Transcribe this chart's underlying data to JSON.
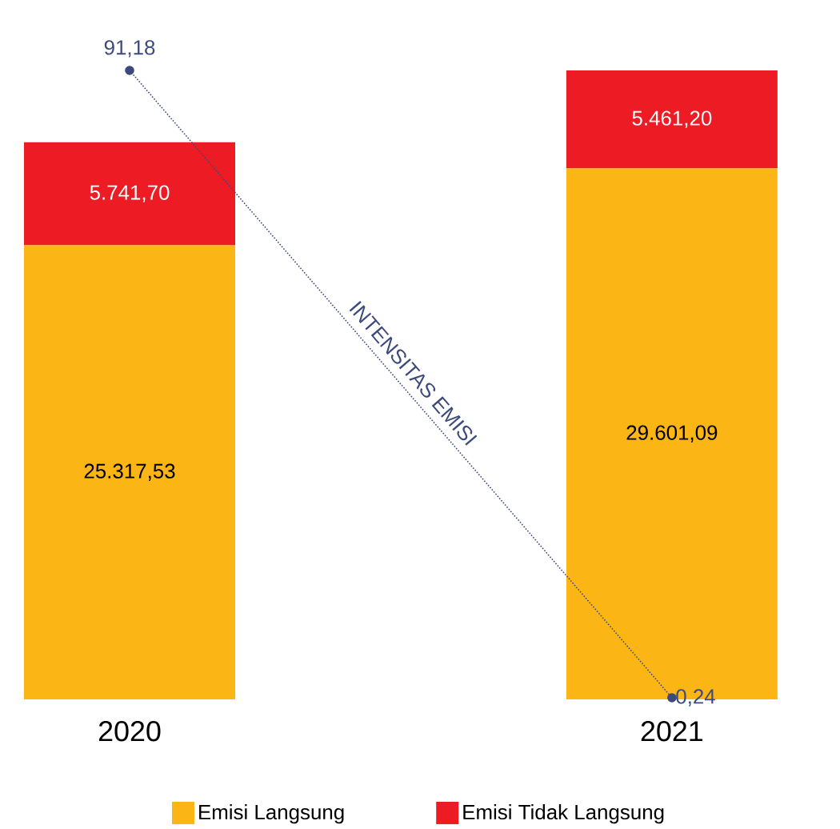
{
  "chart_data": {
    "type": "bar",
    "stacked": true,
    "categories": [
      "2020",
      "2021"
    ],
    "legend": "bottom",
    "series": [
      {
        "name": "Emisi Langsung",
        "color": "#fbb615",
        "values": [
          25317.53,
          29601.09
        ],
        "value_labels": [
          "25.317,53",
          "29.601,09"
        ]
      },
      {
        "name": "Emisi Tidak Langsung",
        "color": "#ed1c24",
        "values": [
          5741.7,
          5461.2
        ],
        "value_labels": [
          "5.741,70",
          "5.461,20"
        ]
      },
      {
        "name": "INTENSITAS EMISI",
        "type": "line",
        "axis": "y2",
        "color": "#3d4a7c",
        "line_style": "dotted",
        "marker": "circle",
        "values": [
          91.18,
          0.24
        ],
        "value_labels": [
          "91,18",
          "0,24"
        ]
      }
    ]
  }
}
